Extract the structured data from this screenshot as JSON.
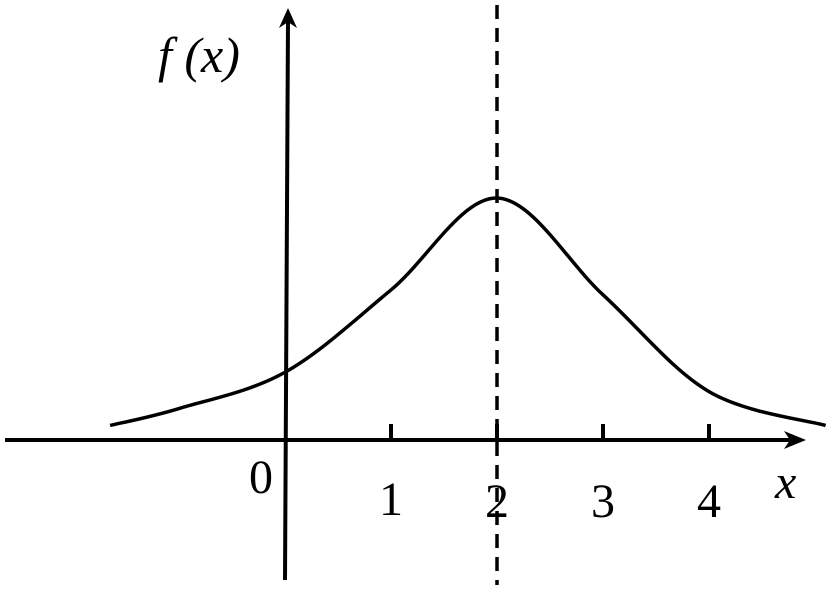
{
  "chart_data": {
    "type": "line",
    "title": "",
    "ylabel": "f (x)",
    "xlabel": "x",
    "origin_label": "0",
    "x_ticks": [
      1,
      2,
      3,
      4
    ],
    "x_tick_labels": [
      "1",
      "2",
      "3",
      "4"
    ],
    "reference_line": {
      "x": 2,
      "style": "dashed"
    },
    "grid": false,
    "x": [
      -1.65,
      -1,
      0,
      1,
      2,
      3,
      4,
      5.1
    ],
    "y": [
      0.06,
      0.13,
      0.28,
      0.62,
      1.0,
      0.6,
      0.2,
      0.06
    ],
    "color": "#000000"
  }
}
